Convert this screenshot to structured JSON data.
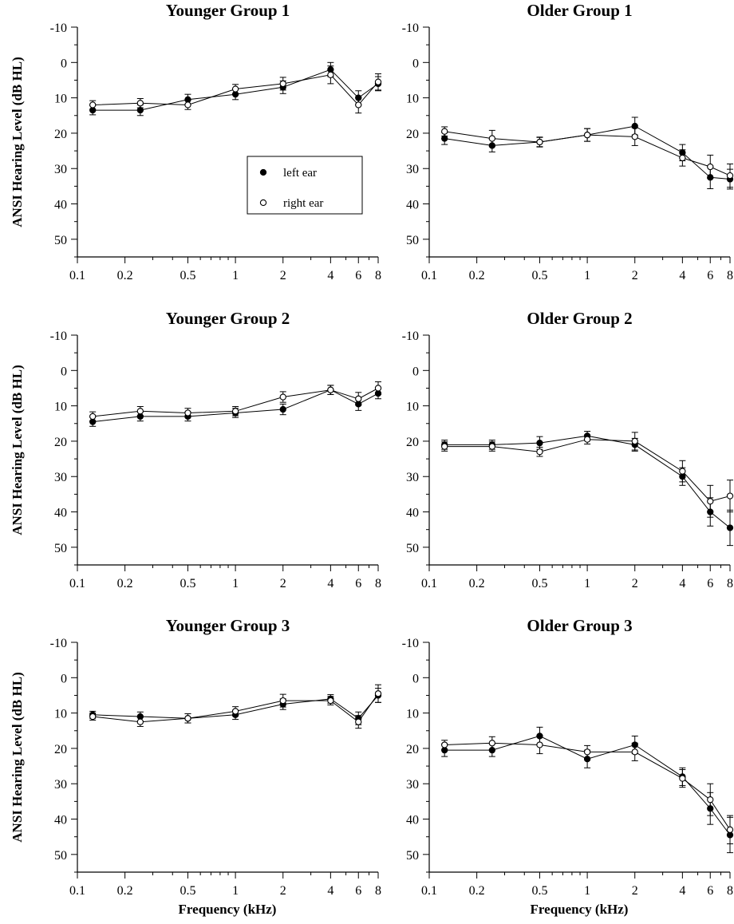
{
  "figure": {
    "ylabel": "ANSI Hearing Level (dB HL)",
    "xlabel": "Frequency (kHz)",
    "legend": {
      "left": "left ear",
      "right": "right ear"
    }
  },
  "chart_data": [
    {
      "type": "line",
      "title": "Younger Group 1",
      "x": [
        0.125,
        0.25,
        0.5,
        1,
        2,
        4,
        6,
        8
      ],
      "xscale": "log",
      "xlim": [
        0.1,
        8
      ],
      "xticks": [
        "0.1",
        "0.2",
        "0.5",
        "1",
        "2",
        "4",
        "6",
        "8"
      ],
      "ylim": [
        -10,
        55
      ],
      "y_inverted": true,
      "yticks": [
        "-10",
        "0",
        "10",
        "20",
        "30",
        "40",
        "50"
      ],
      "legend_position": "lower-right",
      "series": [
        {
          "name": "left ear",
          "marker": "filled-circle",
          "values": [
            13.5,
            13.5,
            10.5,
            9,
            7,
            2,
            10,
            6
          ],
          "errors": [
            1.3,
            1.5,
            1.5,
            1.5,
            1.8,
            2,
            2,
            2
          ]
        },
        {
          "name": "right ear",
          "marker": "open-circle",
          "values": [
            12,
            11.5,
            12,
            7.5,
            6,
            3.5,
            12,
            5.5
          ],
          "errors": [
            1.2,
            1.3,
            1.3,
            1.3,
            1.8,
            2.5,
            2.3,
            2.3
          ]
        }
      ]
    },
    {
      "type": "line",
      "title": "Older Group 1",
      "x": [
        0.125,
        0.25,
        0.5,
        1,
        2,
        4,
        6,
        8
      ],
      "xscale": "log",
      "xlim": [
        0.1,
        8
      ],
      "xticks": [
        "0.1",
        "0.2",
        "0.5",
        "1",
        "2",
        "4",
        "6",
        "8"
      ],
      "ylim": [
        -10,
        55
      ],
      "y_inverted": true,
      "yticks": [
        "-10",
        "0",
        "10",
        "20",
        "30",
        "40",
        "50"
      ],
      "series": [
        {
          "name": "left ear",
          "marker": "filled-circle",
          "values": [
            21.5,
            23.5,
            22.5,
            20.5,
            18,
            25.5,
            32.5,
            33
          ],
          "errors": [
            1.7,
            1.8,
            1.4,
            1.8,
            2.5,
            2.3,
            3.2,
            2.8
          ]
        },
        {
          "name": "right ear",
          "marker": "open-circle",
          "values": [
            19.5,
            21.5,
            22.5,
            20.5,
            21,
            27,
            29.5,
            32
          ],
          "errors": [
            1.3,
            2.3,
            1.3,
            1.8,
            2.5,
            2.3,
            3.3,
            3.3
          ]
        }
      ]
    },
    {
      "type": "line",
      "title": "Younger Group 2",
      "x": [
        0.125,
        0.25,
        0.5,
        1,
        2,
        4,
        6,
        8
      ],
      "xscale": "log",
      "xlim": [
        0.1,
        8
      ],
      "xticks": [
        "0.1",
        "0.2",
        "0.5",
        "1",
        "2",
        "4",
        "6",
        "8"
      ],
      "ylim": [
        -10,
        55
      ],
      "y_inverted": true,
      "yticks": [
        "-10",
        "0",
        "10",
        "20",
        "30",
        "40",
        "50"
      ],
      "series": [
        {
          "name": "left ear",
          "marker": "filled-circle",
          "values": [
            14.5,
            13,
            13,
            12,
            11,
            5.5,
            9.5,
            6.5
          ],
          "errors": [
            1.3,
            1.3,
            1.3,
            1.3,
            1.5,
            1.3,
            1.8,
            1.5
          ]
        },
        {
          "name": "right ear",
          "marker": "open-circle",
          "values": [
            13,
            11.5,
            12,
            11.5,
            7.5,
            5.5,
            8,
            5
          ],
          "errors": [
            1.3,
            1.3,
            1.3,
            1.3,
            1.5,
            1.3,
            1.8,
            1.8
          ]
        }
      ]
    },
    {
      "type": "line",
      "title": "Older Group 2",
      "x": [
        0.125,
        0.25,
        0.5,
        1,
        2,
        4,
        6,
        8
      ],
      "xscale": "log",
      "xlim": [
        0.1,
        8
      ],
      "xticks": [
        "0.1",
        "0.2",
        "0.5",
        "1",
        "2",
        "4",
        "6",
        "8"
      ],
      "ylim": [
        -10,
        55
      ],
      "y_inverted": true,
      "yticks": [
        "-10",
        "0",
        "10",
        "20",
        "30",
        "40",
        "50"
      ],
      "series": [
        {
          "name": "left ear",
          "marker": "filled-circle",
          "values": [
            21,
            21,
            20.5,
            18.5,
            21,
            30,
            40,
            44.5
          ],
          "errors": [
            1.3,
            1.3,
            1.8,
            1.3,
            1.8,
            2.5,
            4,
            5
          ]
        },
        {
          "name": "right ear",
          "marker": "open-circle",
          "values": [
            21.5,
            21.5,
            23,
            19.5,
            20,
            28.5,
            37,
            35.5
          ],
          "errors": [
            1.3,
            1.3,
            1.3,
            1.3,
            2.5,
            3,
            4.5,
            4.5
          ]
        }
      ]
    },
    {
      "type": "line",
      "title": "Younger Group 3",
      "x": [
        0.125,
        0.25,
        0.5,
        1,
        2,
        4,
        6,
        8
      ],
      "xscale": "log",
      "xlim": [
        0.1,
        8
      ],
      "xticks": [
        "0.1",
        "0.2",
        "0.5",
        "1",
        "2",
        "4",
        "6",
        "8"
      ],
      "ylim": [
        -10,
        55
      ],
      "y_inverted": true,
      "yticks": [
        "-10",
        "0",
        "10",
        "20",
        "30",
        "40",
        "50"
      ],
      "series": [
        {
          "name": "left ear",
          "marker": "filled-circle",
          "values": [
            10.5,
            11,
            11.5,
            10.5,
            7.5,
            6,
            11.5,
            5
          ],
          "errors": [
            1,
            1.3,
            1.3,
            1.3,
            1.5,
            1.2,
            1.8,
            2
          ]
        },
        {
          "name": "right ear",
          "marker": "open-circle",
          "values": [
            11,
            12.5,
            11.5,
            9.5,
            6.5,
            6.5,
            12.5,
            4.5
          ],
          "errors": [
            1,
            1.3,
            1.3,
            1.3,
            1.8,
            1.2,
            1.8,
            2.5
          ]
        }
      ]
    },
    {
      "type": "line",
      "title": "Older Group 3",
      "x": [
        0.125,
        0.25,
        0.5,
        1,
        2,
        4,
        6,
        8
      ],
      "xscale": "log",
      "xlim": [
        0.1,
        8
      ],
      "xticks": [
        "0.1",
        "0.2",
        "0.5",
        "1",
        "2",
        "4",
        "6",
        "8"
      ],
      "ylim": [
        -10,
        55
      ],
      "y_inverted": true,
      "yticks": [
        "-10",
        "0",
        "10",
        "20",
        "30",
        "40",
        "50"
      ],
      "series": [
        {
          "name": "left ear",
          "marker": "filled-circle",
          "values": [
            20.5,
            20.5,
            16.5,
            23,
            19,
            28,
            37,
            44.5
          ],
          "errors": [
            1.8,
            1.8,
            2.5,
            2.5,
            2.5,
            2.5,
            4.5,
            5
          ]
        },
        {
          "name": "right ear",
          "marker": "open-circle",
          "values": [
            19,
            18.5,
            19,
            21,
            21,
            28.5,
            34.5,
            43
          ],
          "errors": [
            1.3,
            1.8,
            2.5,
            1.8,
            2.5,
            2.5,
            4.5,
            4
          ]
        }
      ]
    }
  ]
}
